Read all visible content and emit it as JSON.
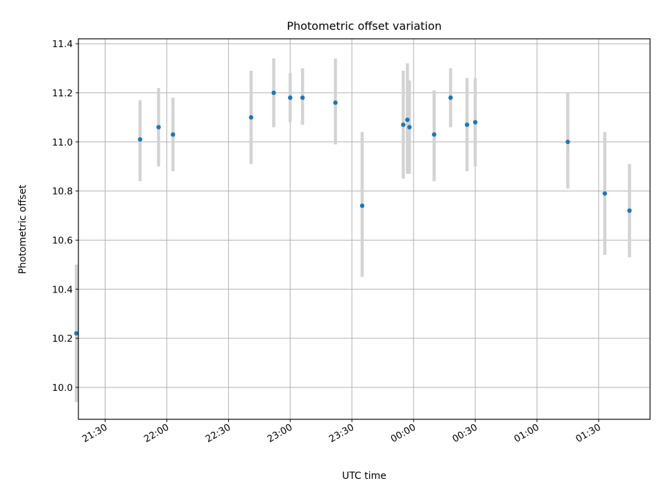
{
  "chart_data": {
    "type": "scatter",
    "title": "Photometric offset variation",
    "xlabel": "UTC time",
    "ylabel": "Photometric offset",
    "x_tick_labels": [
      "21:30",
      "22:00",
      "22:30",
      "23:00",
      "23:30",
      "00:00",
      "00:30",
      "01:00",
      "01:30"
    ],
    "y_ticks": [
      10.0,
      10.2,
      10.4,
      10.6,
      10.8,
      11.0,
      11.2,
      11.4
    ],
    "y_tick_labels": [
      "10.0",
      "10.2",
      "10.4",
      "10.6",
      "10.8",
      "11.0",
      "11.2",
      "11.4"
    ],
    "ylim": [
      9.87,
      11.42
    ],
    "xlim": [
      "21:17",
      "01:55"
    ],
    "grid": true,
    "series": [
      {
        "marker_color": "#1f77b4",
        "errorbar_color": "#d3d3d3",
        "points": [
          {
            "x": "21:16",
            "y": 10.22,
            "err_low": 0.28,
            "err_high": 0.28
          },
          {
            "x": "21:47",
            "y": 11.01,
            "err_low": 0.17,
            "err_high": 0.16
          },
          {
            "x": "21:56",
            "y": 11.06,
            "err_low": 0.16,
            "err_high": 0.16
          },
          {
            "x": "22:03",
            "y": 11.03,
            "err_low": 0.15,
            "err_high": 0.15
          },
          {
            "x": "22:41",
            "y": 11.1,
            "err_low": 0.19,
            "err_high": 0.19
          },
          {
            "x": "22:52",
            "y": 11.2,
            "err_low": 0.14,
            "err_high": 0.14
          },
          {
            "x": "23:00",
            "y": 11.18,
            "err_low": 0.1,
            "err_high": 0.1
          },
          {
            "x": "23:06",
            "y": 11.18,
            "err_low": 0.11,
            "err_high": 0.12
          },
          {
            "x": "23:22",
            "y": 11.16,
            "err_low": 0.17,
            "err_high": 0.18
          },
          {
            "x": "23:35",
            "y": 10.74,
            "err_low": 0.29,
            "err_high": 0.3
          },
          {
            "x": "23:55",
            "y": 11.07,
            "err_low": 0.22,
            "err_high": 0.22
          },
          {
            "x": "23:57",
            "y": 11.09,
            "err_low": 0.22,
            "err_high": 0.23
          },
          {
            "x": "23:58",
            "y": 11.06,
            "err_low": 0.19,
            "err_high": 0.19
          },
          {
            "x": "00:10",
            "y": 11.03,
            "err_low": 0.19,
            "err_high": 0.18
          },
          {
            "x": "00:18",
            "y": 11.18,
            "err_low": 0.12,
            "err_high": 0.12
          },
          {
            "x": "00:26",
            "y": 11.07,
            "err_low": 0.19,
            "err_high": 0.19
          },
          {
            "x": "00:30",
            "y": 11.08,
            "err_low": 0.18,
            "err_high": 0.18
          },
          {
            "x": "01:15",
            "y": 11.0,
            "err_low": 0.19,
            "err_high": 0.2
          },
          {
            "x": "01:33",
            "y": 10.79,
            "err_low": 0.25,
            "err_high": 0.25
          },
          {
            "x": "01:45",
            "y": 10.72,
            "err_low": 0.19,
            "err_high": 0.19
          }
        ]
      }
    ]
  }
}
